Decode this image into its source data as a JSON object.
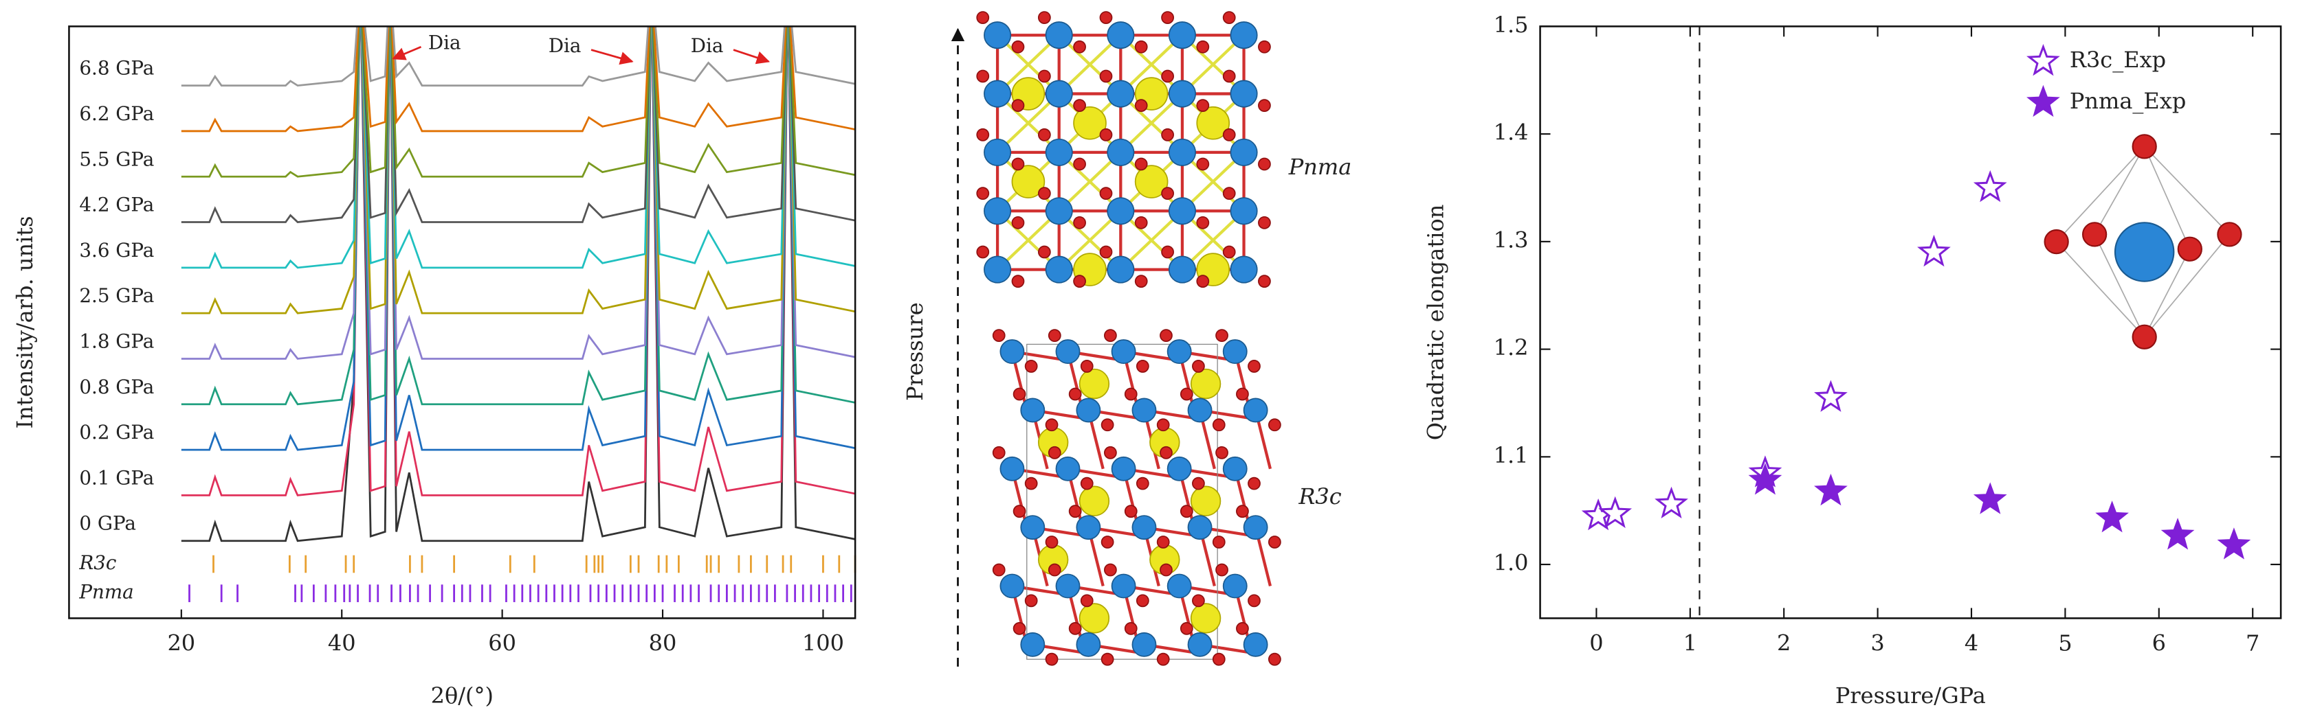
{
  "chart_data": [
    {
      "type": "line",
      "xlabel": "2θ/(°)",
      "ylabel": "Intensity/arb. units",
      "xlim": [
        6,
        104
      ],
      "ylim": [
        0,
        13
      ],
      "xticks": [
        20,
        40,
        60,
        80,
        100
      ],
      "x": [
        20,
        23.5,
        24.2,
        25,
        33,
        33.6,
        34.5,
        40,
        41.5,
        42.3,
        43.6,
        45.4,
        46,
        46.8,
        48.4,
        50,
        62,
        70,
        70.8,
        72.5,
        77.8,
        78.6,
        79.6,
        84,
        85.7,
        88,
        94.8,
        95.6,
        96.6,
        105
      ],
      "series": [
        {
          "name": "0 GPa",
          "color": "#333333",
          "values": [
            1.7,
            1.7,
            2.1,
            1.7,
            1.7,
            2.1,
            1.7,
            1.8,
            5.2,
            14,
            1.8,
            1.9,
            14,
            1.9,
            3.2,
            1.7,
            1.7,
            1.7,
            3.0,
            1.8,
            2.0,
            14,
            2.0,
            1.8,
            3.3,
            1.8,
            2.0,
            14,
            2.0,
            1.7
          ]
        },
        {
          "name": "0.1 GPa",
          "color": "#e0305a",
          "values": [
            2.7,
            2.7,
            3.1,
            2.7,
            2.7,
            3.05,
            2.7,
            2.8,
            4.7,
            14,
            2.8,
            2.9,
            14,
            2.9,
            4.1,
            2.7,
            2.7,
            2.7,
            3.8,
            2.8,
            3.0,
            14,
            3.0,
            2.8,
            4.2,
            2.8,
            3.0,
            14,
            3.0,
            2.7
          ]
        },
        {
          "name": "0.2 GPa",
          "color": "#1f6fbf",
          "values": [
            3.7,
            3.7,
            4.05,
            3.7,
            3.7,
            4.0,
            3.7,
            3.8,
            5.2,
            14,
            3.8,
            3.9,
            14,
            3.9,
            4.9,
            3.7,
            3.7,
            3.7,
            4.6,
            3.8,
            4.0,
            14,
            4.0,
            3.8,
            5.0,
            3.8,
            4.0,
            14,
            4.0,
            3.7
          ]
        },
        {
          "name": "0.8 GPa",
          "color": "#20a080",
          "values": [
            4.7,
            4.7,
            5.05,
            4.7,
            4.7,
            4.95,
            4.7,
            4.8,
            5.9,
            14,
            4.8,
            4.9,
            14,
            4.9,
            5.7,
            4.7,
            4.7,
            4.7,
            5.4,
            4.8,
            5.0,
            14,
            5.0,
            4.8,
            5.8,
            4.8,
            5.0,
            14,
            5.0,
            4.7
          ]
        },
        {
          "name": "1.8 GPa",
          "color": "#8c7fd0",
          "values": [
            5.7,
            5.7,
            6.0,
            5.7,
            5.7,
            5.9,
            5.7,
            5.8,
            6.7,
            14,
            5.8,
            5.9,
            14,
            5.9,
            6.6,
            5.7,
            5.7,
            5.7,
            6.2,
            5.8,
            6.0,
            14,
            6.0,
            5.8,
            6.6,
            5.8,
            6.0,
            14,
            6.0,
            5.7
          ]
        },
        {
          "name": "2.5 GPa",
          "color": "#b0a000",
          "values": [
            6.7,
            6.7,
            7.0,
            6.7,
            6.7,
            6.9,
            6.7,
            6.8,
            7.5,
            14,
            6.8,
            6.9,
            14,
            6.9,
            7.6,
            6.7,
            6.7,
            6.7,
            7.2,
            6.8,
            7.0,
            14,
            7.0,
            6.8,
            7.6,
            6.8,
            7.0,
            14,
            7.0,
            6.7
          ]
        },
        {
          "name": "3.6 GPa",
          "color": "#20c0c0",
          "values": [
            7.7,
            7.7,
            8.0,
            7.7,
            7.7,
            7.85,
            7.7,
            7.8,
            8.3,
            14,
            7.8,
            7.9,
            14,
            7.9,
            8.5,
            7.7,
            7.7,
            7.7,
            8.1,
            7.8,
            8.0,
            14,
            8.0,
            7.8,
            8.5,
            7.8,
            8.0,
            14,
            8.0,
            7.7
          ]
        },
        {
          "name": "4.2 GPa",
          "color": "#555555",
          "values": [
            8.7,
            8.7,
            9.0,
            8.7,
            8.7,
            8.85,
            8.7,
            8.8,
            9.2,
            14,
            8.8,
            8.9,
            14,
            8.9,
            9.4,
            8.7,
            8.7,
            8.7,
            9.1,
            8.8,
            9.0,
            14,
            9.0,
            8.8,
            9.5,
            8.8,
            9.0,
            14,
            9.0,
            8.7
          ]
        },
        {
          "name": "5.5 GPa",
          "color": "#7a9a20",
          "values": [
            9.7,
            9.7,
            9.95,
            9.7,
            9.7,
            9.8,
            9.7,
            9.8,
            10.1,
            14,
            9.8,
            9.9,
            14,
            9.9,
            10.3,
            9.7,
            9.7,
            9.7,
            10.0,
            9.8,
            10.0,
            14,
            10.0,
            9.8,
            10.4,
            9.8,
            10.0,
            14,
            10.0,
            9.7
          ]
        },
        {
          "name": "6.2 GPa",
          "color": "#e07000",
          "values": [
            10.7,
            10.7,
            10.95,
            10.7,
            10.7,
            10.8,
            10.7,
            10.8,
            11.0,
            14,
            10.8,
            10.9,
            14,
            10.9,
            11.3,
            10.7,
            10.7,
            10.7,
            11.0,
            10.8,
            11.0,
            14,
            11.0,
            10.8,
            11.3,
            10.8,
            11.0,
            14,
            11.0,
            10.7
          ]
        },
        {
          "name": "6.8 GPa",
          "color": "#999999",
          "values": [
            11.7,
            11.7,
            11.9,
            11.7,
            11.7,
            11.8,
            11.7,
            11.8,
            12.0,
            14,
            11.8,
            11.9,
            14,
            11.9,
            12.2,
            11.7,
            11.7,
            11.7,
            11.9,
            11.8,
            12.0,
            14,
            12.0,
            11.8,
            12.2,
            11.8,
            12.0,
            14,
            12.0,
            11.7
          ]
        }
      ],
      "reflections": [
        {
          "name": "R3c",
          "color": "#e8a030",
          "positions": [
            24,
            33.5,
            35.5,
            40.5,
            41.5,
            48.5,
            50,
            54,
            61,
            64,
            70.5,
            71.5,
            72,
            72.5,
            76,
            77,
            79.5,
            80.5,
            82,
            85.5,
            86,
            87,
            89.5,
            91,
            93,
            95,
            96,
            100,
            102,
            104
          ]
        },
        {
          "name": "Pnma",
          "color": "#8a2be2",
          "positions": [
            21,
            25,
            27,
            34.2,
            35,
            36.5,
            38,
            39.2,
            40.3,
            41,
            42,
            43.5,
            44.5,
            46.2,
            47.3,
            48.5,
            49.5,
            51,
            52.5,
            54,
            55,
            56,
            57.5,
            58.5,
            60.5,
            61.5,
            62.5,
            63.5,
            64.5,
            65.5,
            66.5,
            67.5,
            68.5,
            69.5,
            71,
            72,
            73,
            74,
            75,
            76,
            77,
            78,
            79,
            80,
            81.5,
            82.5,
            83.5,
            84.5,
            86,
            87,
            88,
            89,
            90,
            91,
            92,
            93,
            94,
            95.5,
            96.5,
            97.5,
            98.5,
            99.5,
            100.5,
            101.5,
            102.5,
            103.5
          ]
        }
      ],
      "annotations": [
        "Dia",
        "Dia",
        "Dia"
      ]
    },
    {
      "type": "scatter",
      "xlabel": "Pressure/GPa",
      "ylabel": "Quadratic elongation",
      "xlim": [
        -0.6,
        7.3
      ],
      "ylim": [
        0.95,
        1.5
      ],
      "xticks": [
        0,
        1,
        2,
        3,
        4,
        5,
        6,
        7
      ],
      "yticks": [
        {
          "value": 1.0,
          "label": "1.0"
        },
        {
          "value": 1.1,
          "label": "1.1"
        },
        {
          "value": 1.2,
          "label": "1.2"
        },
        {
          "value": 1.3,
          "label": "1.3"
        },
        {
          "value": 1.4,
          "label": "1.4"
        },
        {
          "value": 1.5,
          "label": "1.5"
        }
      ],
      "vlines": [
        1.1
      ],
      "legend": "upper right",
      "series": [
        {
          "name": "R3c_Exp",
          "color": "#7f1fd6",
          "marker": "open-star",
          "x": [
            0.02,
            0.2,
            0.8,
            1.8,
            2.5,
            3.6,
            4.2
          ],
          "values": [
            1.045,
            1.047,
            1.056,
            1.085,
            1.155,
            1.29,
            1.35
          ]
        },
        {
          "name": "Pnma_Exp",
          "color": "#7f1fd6",
          "marker": "filled-star",
          "x": [
            1.8,
            2.5,
            4.2,
            5.5,
            6.2,
            6.8
          ],
          "values": [
            1.078,
            1.068,
            1.06,
            1.043,
            1.027,
            1.018
          ]
        }
      ]
    }
  ],
  "structure": {
    "axis_label": "Pressure",
    "top_phase": "Pnma",
    "bottom_phase": "R3c"
  }
}
